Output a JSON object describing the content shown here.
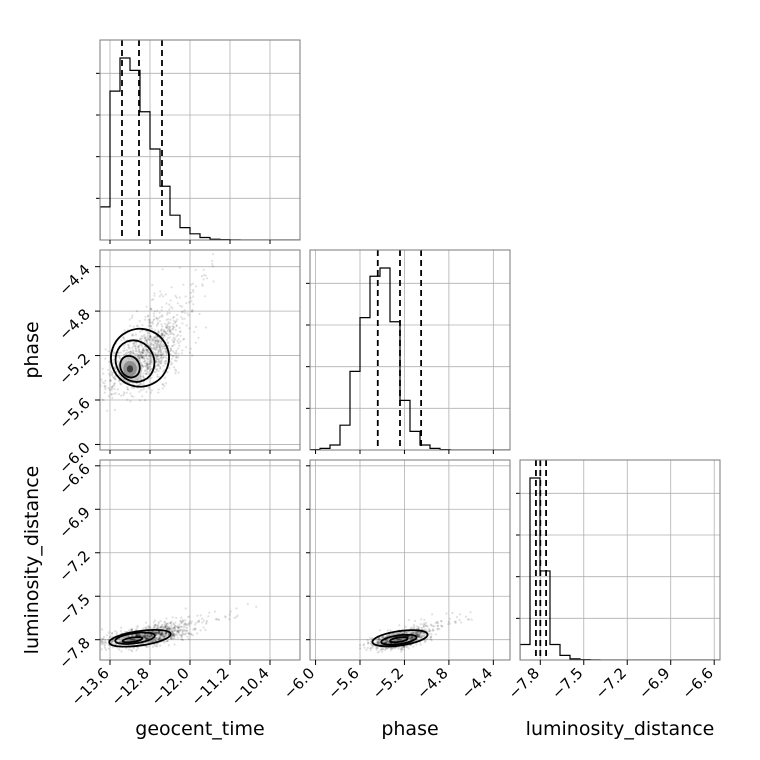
{
  "chart_data": {
    "type": "corner",
    "parameters": [
      {
        "name": "geocent_time",
        "label": "geocent_time",
        "range": [
          -13.8,
          -9.8
        ],
        "ticks": [
          -13.6,
          -12.8,
          -12.0,
          -11.2,
          -10.4
        ],
        "tick_labels": [
          "−13.6",
          "−12.8",
          "−12.0",
          "−11.2",
          "−10.4"
        ],
        "quantiles": [
          -13.36,
          -13.02,
          -12.56
        ]
      },
      {
        "name": "phase",
        "label": "phase",
        "range": [
          -6.05,
          -4.25
        ],
        "ticks": [
          -6.0,
          -5.6,
          -5.2,
          -4.8,
          -4.4
        ],
        "tick_labels": [
          "−6.0",
          "−5.6",
          "−5.2",
          "−4.8",
          "−4.4"
        ],
        "quantiles": [
          -5.44,
          -5.24,
          -5.05
        ]
      },
      {
        "name": "luminosity_distance",
        "label": "luminosity_distance",
        "range": [
          -7.94,
          -6.56
        ],
        "ticks": [
          -7.8,
          -7.5,
          -7.2,
          -6.9,
          -6.6
        ],
        "tick_labels": [
          "−7.8",
          "−7.5",
          "−7.2",
          "−6.9",
          "−6.6"
        ],
        "quantiles": [
          -7.83,
          -7.8,
          -7.76
        ]
      }
    ],
    "histograms": [
      {
        "param": "geocent_time",
        "bin_edges": [
          -13.8,
          -13.6,
          -13.4,
          -13.2,
          -13.0,
          -12.8,
          -12.6,
          -12.4,
          -12.2,
          -12.0,
          -11.8,
          -11.6,
          -11.4,
          -11.2,
          -11.0,
          -10.8,
          -10.6,
          -10.4,
          -10.2,
          -10.0,
          -9.8
        ],
        "counts": [
          800,
          3600,
          4400,
          4100,
          3100,
          2200,
          1300,
          600,
          300,
          150,
          60,
          20,
          10,
          5,
          0,
          0,
          0,
          0,
          0,
          0
        ]
      },
      {
        "param": "phase",
        "bin_edges": [
          -6.05,
          -5.96,
          -5.87,
          -5.78,
          -5.69,
          -5.6,
          -5.51,
          -5.42,
          -5.33,
          -5.24,
          -5.15,
          -5.06,
          -4.97,
          -4.88,
          -4.79,
          -4.7,
          -4.61,
          -4.52,
          -4.43,
          -4.34,
          -4.25
        ],
        "counts": [
          10,
          40,
          120,
          600,
          1900,
          3200,
          4200,
          4400,
          3100,
          1200,
          450,
          120,
          40,
          10,
          0,
          0,
          0,
          0,
          0,
          0
        ]
      },
      {
        "param": "luminosity_distance",
        "bin_edges": [
          -7.94,
          -7.871,
          -7.802,
          -7.733,
          -7.664,
          -7.595,
          -7.526,
          -7.457,
          -7.388,
          -7.319,
          -7.25,
          -7.181,
          -7.112,
          -7.043,
          -6.974,
          -6.905,
          -6.836,
          -6.767,
          -6.698,
          -6.629,
          -6.56
        ],
        "counts": [
          400,
          4700,
          2300,
          400,
          120,
          30,
          10,
          5,
          0,
          0,
          0,
          0,
          0,
          0,
          0,
          0,
          0,
          0,
          0,
          0
        ]
      }
    ],
    "pairs": [
      {
        "x": "geocent_time",
        "y": "phase",
        "mode": [
          -13.2,
          -5.32
        ],
        "levels": [
          {
            "cx": -13.2,
            "cy": -5.3,
            "rx": 0.19,
            "ry": 0.1
          },
          {
            "cx": -13.1,
            "cy": -5.25,
            "rx": 0.38,
            "ry": 0.19
          },
          {
            "cx": -13.0,
            "cy": -5.22,
            "rx": 0.58,
            "ry": 0.26
          }
        ],
        "scatter_center": [
          -12.9,
          -5.2
        ],
        "scatter_spread": [
          0.55,
          0.25
        ],
        "correlation": 0.55
      },
      {
        "x": "geocent_time",
        "y": "luminosity_distance",
        "mode": [
          -13.15,
          -7.8
        ],
        "levels": [
          {
            "cx": -13.15,
            "cy": -7.8,
            "rx": 0.2,
            "ry": 0.015
          },
          {
            "cx": -13.1,
            "cy": -7.79,
            "rx": 0.4,
            "ry": 0.035
          },
          {
            "cx": -13.0,
            "cy": -7.79,
            "rx": 0.62,
            "ry": 0.05
          }
        ],
        "scatter_center": [
          -12.9,
          -7.78
        ],
        "scatter_spread": [
          0.6,
          0.05
        ],
        "correlation": 0.5
      },
      {
        "x": "phase",
        "y": "luminosity_distance",
        "mode": [
          -5.25,
          -7.8
        ],
        "levels": [
          {
            "cx": -5.25,
            "cy": -7.8,
            "rx": 0.08,
            "ry": 0.015
          },
          {
            "cx": -5.25,
            "cy": -7.8,
            "rx": 0.16,
            "ry": 0.03
          },
          {
            "cx": -5.24,
            "cy": -7.79,
            "rx": 0.25,
            "ry": 0.05
          }
        ],
        "scatter_center": [
          -5.25,
          -7.8
        ],
        "scatter_spread": [
          0.16,
          0.04
        ],
        "correlation": 0.45
      }
    ],
    "grid": true,
    "quantile_style": "dashed",
    "scatter_color": "#000000",
    "line_color": "#000000"
  }
}
